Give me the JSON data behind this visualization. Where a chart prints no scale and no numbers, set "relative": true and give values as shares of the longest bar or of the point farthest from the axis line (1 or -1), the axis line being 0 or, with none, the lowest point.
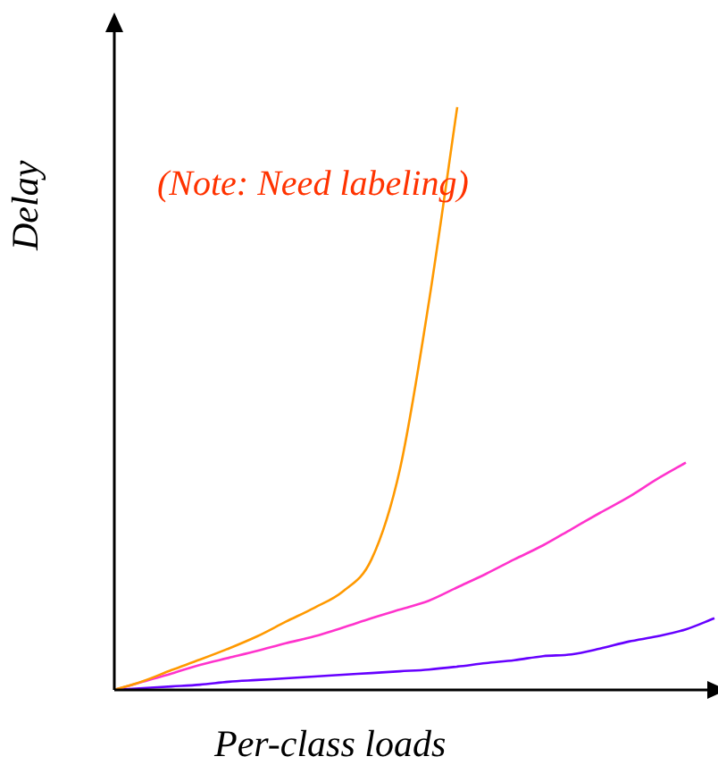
{
  "chart_data": {
    "type": "line",
    "relative": true,
    "xlabel": "Per-class loads",
    "ylabel": "Delay",
    "annotations": [
      "(Note: Need labeling)"
    ],
    "marker": "none",
    "categories": [
      null,
      null,
      null,
      null,
      null,
      null,
      null,
      null,
      null,
      null,
      null,
      null,
      null,
      null,
      null,
      null,
      null,
      null,
      null,
      null,
      null,
      null
    ],
    "series": [
      {
        "color": "#ff9900",
        "values": [
          0,
          0.015,
          0.034,
          0.052,
          0.071,
          0.092,
          0.117,
          0.141,
          0.169,
          0.224,
          0.38,
          0.663,
          1,
          null,
          null,
          null,
          null,
          null,
          null,
          null,
          null,
          null
        ]
      },
      {
        "color": "#ff33cc",
        "values": [
          0,
          0.014,
          0.028,
          0.043,
          0.055,
          0.067,
          0.08,
          0.092,
          0.107,
          0.123,
          0.138,
          0.153,
          0.176,
          0.199,
          0.224,
          0.248,
          0.276,
          0.304,
          0.331,
          0.362,
          0.39,
          null
        ]
      },
      {
        "color": "#6600ff",
        "values": [
          0,
          0.003,
          0.006,
          0.009,
          0.014,
          0.017,
          0.02,
          0.023,
          0.026,
          0.029,
          0.032,
          0.035,
          0.04,
          0.046,
          0.051,
          0.058,
          0.061,
          0.071,
          0.083,
          0.092,
          0.104,
          0.123
        ]
      }
    ]
  }
}
